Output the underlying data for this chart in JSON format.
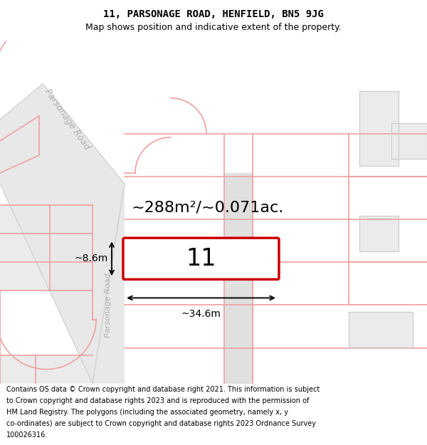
{
  "title_line1": "11, PARSONAGE ROAD, HENFIELD, BN5 9JG",
  "title_line2": "Map shows position and indicative extent of the property.",
  "area_text": "~288m²/~0.071ac.",
  "property_number": "11",
  "dim_width": "~34.6m",
  "dim_height": "~8.6m",
  "road_label_top": "Parsonage Road",
  "road_label_mid": "Parsonage Road",
  "footer_lines": [
    "Contains OS data © Crown copyright and database right 2021. This information is subject",
    "to Crown copyright and database rights 2023 and is reproduced with the permission of",
    "HM Land Registry. The polygons (including the associated geometry, namely x, y",
    "co-ordinates) are subject to Crown copyright and database rights 2023 Ordnance Survey",
    "100026316."
  ],
  "map_bg": "#ffffff",
  "road_fill": "#e8e8e8",
  "road_stroke": "#cccccc",
  "building_fill": "#ebebeb",
  "building_stroke": "#cccccc",
  "pink": "#f0a0a0",
  "plot_border_color": "#cc0000",
  "footer_bg": "#ffffff",
  "title_bg": "#ffffff",
  "road_label_color": "#b0b0b0",
  "dim_arrow_color": "#111111",
  "title_font": "DejaVu Sans",
  "title1_size": 10,
  "title2_size": 9,
  "area_size": 16,
  "prop_num_size": 24,
  "dim_size": 10,
  "road_lbl_size": 8,
  "footer_size": 7
}
